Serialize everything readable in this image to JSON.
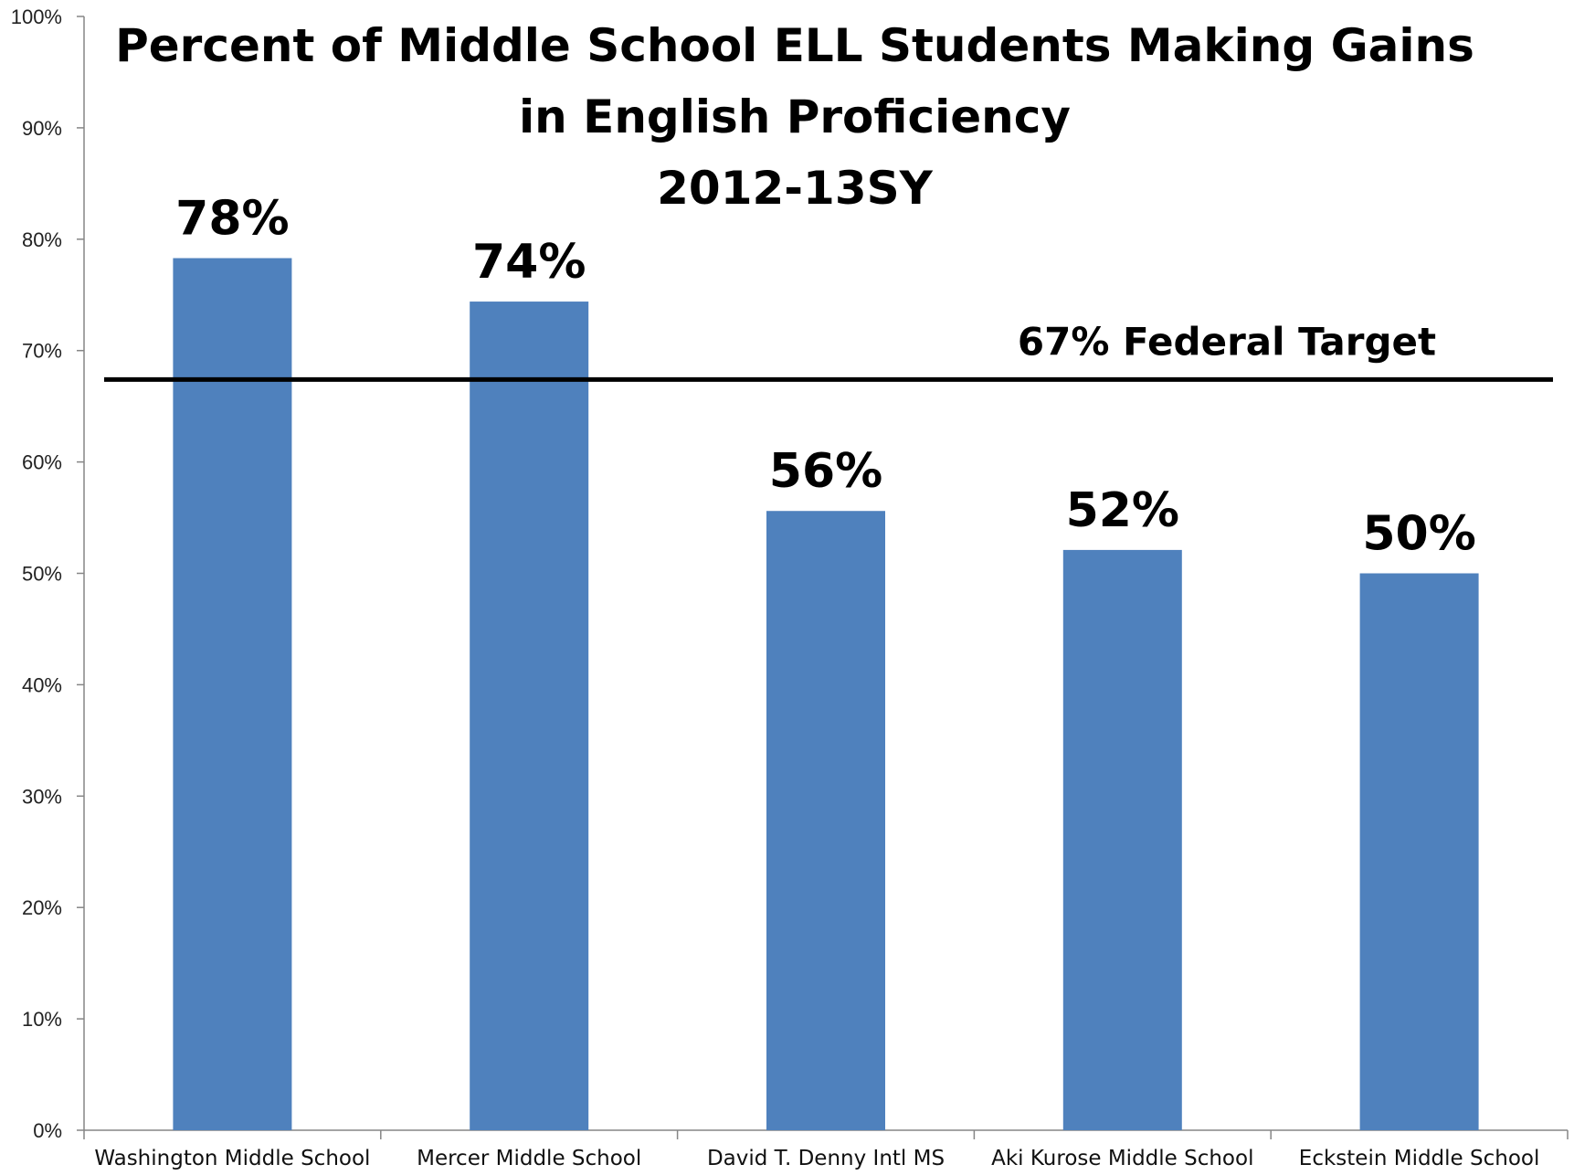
{
  "chart_data": {
    "type": "bar",
    "title_lines": [
      "Percent of Middle School ELL Students Making Gains",
      "in English Proficiency",
      "2012-13SY"
    ],
    "categories": [
      "Washington Middle School",
      "Mercer Middle School",
      "David T. Denny Intl MS",
      "Aki Kurose Middle School",
      "Eckstein Middle School"
    ],
    "values": [
      78.3,
      74.4,
      55.6,
      52.1,
      50.0
    ],
    "data_labels": [
      "78%",
      "74%",
      "56%",
      "52%",
      "50%"
    ],
    "ylim": [
      0,
      100
    ],
    "y_ticks": [
      0,
      10,
      20,
      30,
      40,
      50,
      60,
      70,
      80,
      90,
      100
    ],
    "y_tick_labels": [
      "0%",
      "10%",
      "20%",
      "30%",
      "40%",
      "50%",
      "60%",
      "70%",
      "80%",
      "90%",
      "100%"
    ],
    "xlabel": "",
    "ylabel": "",
    "grid": false,
    "reference_line": {
      "value": 67.4,
      "label": "67% Federal Target"
    },
    "colors": {
      "bar": "#4f81bd",
      "axis": "#868686",
      "reference_line": "#000000"
    }
  }
}
